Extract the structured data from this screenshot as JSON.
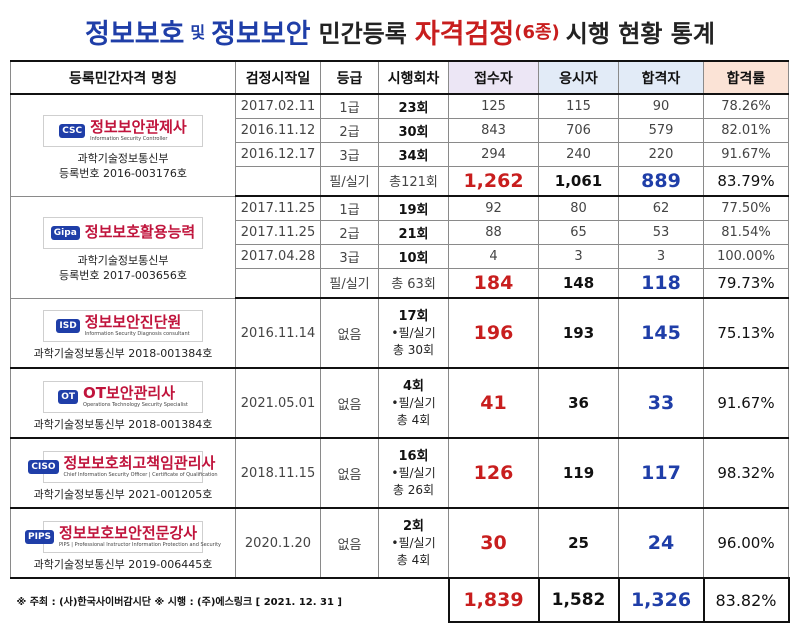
{
  "title": {
    "part1": "정보보호",
    "conj": "및",
    "part2": "정보보안",
    "part3": "민간등록",
    "part4": "자격검정",
    "part5": "(6종)",
    "part6": "시행 현황 통계"
  },
  "headers": [
    "등록민간자격 명칭",
    "검정시작일",
    "등급",
    "시행회차",
    "접수자",
    "응시자",
    "합격자",
    "합격률"
  ],
  "groups": [
    {
      "logo": "정보보안관제사",
      "logo_sub": "Information Security Controller",
      "logo_mark": "CSC",
      "org": "과학기술정보통신부",
      "reg": "등록번호 2016-003176호",
      "rows": [
        {
          "date": "2017.02.11",
          "grade": "1급",
          "sess": "23회",
          "apply": "125",
          "take": "115",
          "pass": "90",
          "rate": "78.26%"
        },
        {
          "date": "2016.11.12",
          "grade": "2급",
          "sess": "30회",
          "apply": "843",
          "take": "706",
          "pass": "579",
          "rate": "82.01%"
        },
        {
          "date": "2016.12.17",
          "grade": "3급",
          "sess": "34회",
          "apply": "294",
          "take": "240",
          "pass": "220",
          "rate": "91.67%"
        }
      ],
      "total": {
        "grade": "필/실기",
        "sess": "총121회",
        "apply": "1,262",
        "take": "1,061",
        "pass": "889",
        "rate": "83.79%"
      }
    },
    {
      "logo": "정보보호활용능력",
      "logo_sub": "",
      "logo_mark": "Gipa",
      "org": "과학기술정보통신부",
      "reg": "등록번호 2017-003656호",
      "rows": [
        {
          "date": "2017.11.25",
          "grade": "1급",
          "sess": "19회",
          "apply": "92",
          "take": "80",
          "pass": "62",
          "rate": "77.50%"
        },
        {
          "date": "2017.11.25",
          "grade": "2급",
          "sess": "21회",
          "apply": "88",
          "take": "65",
          "pass": "53",
          "rate": "81.54%"
        },
        {
          "date": "2017.04.28",
          "grade": "3급",
          "sess": "10회",
          "apply": "4",
          "take": "3",
          "pass": "3",
          "rate": "100.00%"
        }
      ],
      "total": {
        "grade": "필/실기",
        "sess": "총 63회",
        "apply": "184",
        "take": "148",
        "pass": "118",
        "rate": "79.73%"
      }
    }
  ],
  "singles": [
    {
      "logo": "정보보안진단원",
      "logo_sub": "Information Security Diagnosis consultant",
      "logo_mark": "ISD",
      "org": "과학기술정보통신부 2018-001384호",
      "date": "2016.11.14",
      "grade": "없음",
      "sess1": "17회",
      "sess2": "•필/실기",
      "sess3": "총 30회",
      "apply": "196",
      "take": "193",
      "pass": "145",
      "rate": "75.13%"
    },
    {
      "logo": "OT보안관리사",
      "logo_sub": "Operations Technology Security Specialist",
      "logo_mark": "OT",
      "org": "과학기술정보통신부 2018-001384호",
      "date": "2021.05.01",
      "grade": "없음",
      "sess1": "4회",
      "sess2": "•필/실기",
      "sess3": "총 4회",
      "apply": "41",
      "take": "36",
      "pass": "33",
      "rate": "91.67%"
    },
    {
      "logo": "정보보호최고책임관리사",
      "logo_sub": "Chief Information Security Officer | Certificate of Qualification",
      "logo_mark": "CISO",
      "org": "과학기술정보통신부 2021-001205호",
      "date": "2018.11.15",
      "grade": "없음",
      "sess1": "16회",
      "sess2": "•필/실기",
      "sess3": "총 26회",
      "apply": "126",
      "take": "119",
      "pass": "117",
      "rate": "98.32%"
    },
    {
      "logo": "정보보호보안전문강사",
      "logo_sub": "PIPS | Professional Instructor Information Protection and Security",
      "logo_mark": "PIPS",
      "org": "과학기술정보통신부 2019-006445호",
      "date": "2020.1.20",
      "grade": "없음",
      "sess1": "2회",
      "sess2": "•필/실기",
      "sess3": "총 4회",
      "apply": "30",
      "take": "25",
      "pass": "24",
      "rate": "96.00%"
    }
  ],
  "grand_total": {
    "apply": "1,839",
    "take": "1,582",
    "pass": "1,326",
    "rate": "83.82%"
  },
  "footer": "※ 주최 : (사)한국사이버감시단   ※ 시행 : (주)에스링크    [ 2021. 12. 31 ]",
  "colors": {
    "blue": "#1f3ea8",
    "red": "#c81e1e",
    "apply_bg": "#ece6f5",
    "take_bg": "#e2ebf7",
    "rate_bg": "#fbe3d6"
  }
}
